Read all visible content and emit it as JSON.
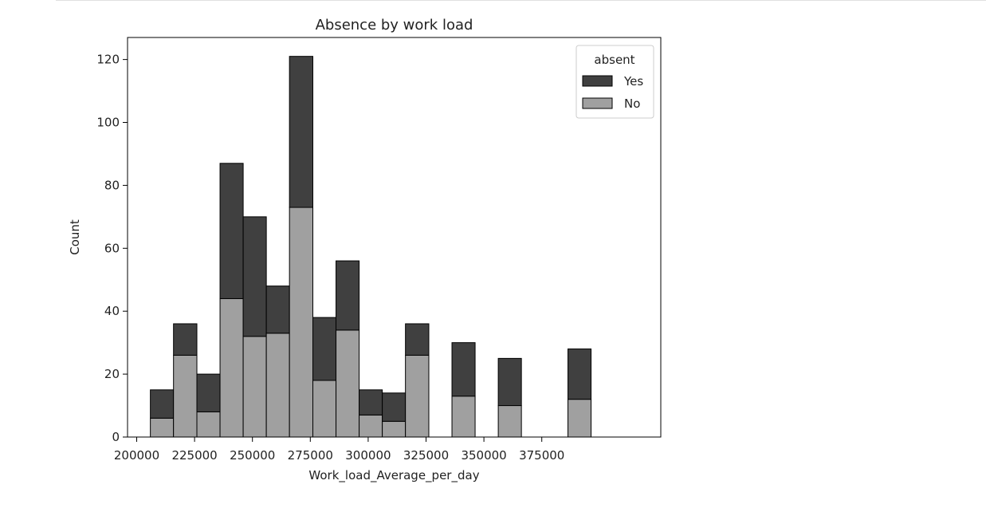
{
  "chart_data": {
    "type": "bar",
    "stacked": true,
    "title": "Absence by work load",
    "xlabel": "Work_load_Average_per_day",
    "ylabel": "Count",
    "xlim": [
      196000,
      384000
    ],
    "ylim": [
      0,
      127
    ],
    "xticks": [
      200000,
      225000,
      250000,
      275000,
      300000,
      325000,
      350000,
      375000
    ],
    "yticks": [
      0,
      20,
      40,
      60,
      80,
      100,
      120
    ],
    "legend": {
      "title": "absent",
      "placement": "top-right"
    },
    "bins": [
      {
        "x0": 205900,
        "x1": 215900,
        "no": 6,
        "yes": 9
      },
      {
        "x0": 215900,
        "x1": 226000,
        "no": 26,
        "yes": 10
      },
      {
        "x0": 226000,
        "x1": 236000,
        "no": 8,
        "yes": 12
      },
      {
        "x0": 236000,
        "x1": 246000,
        "no": 44,
        "yes": 43
      },
      {
        "x0": 246000,
        "x1": 256000,
        "no": 32,
        "yes": 38
      },
      {
        "x0": 256000,
        "x1": 266000,
        "no": 33,
        "yes": 15
      },
      {
        "x0": 266000,
        "x1": 276100,
        "no": 73,
        "yes": 48
      },
      {
        "x0": 276100,
        "x1": 286100,
        "no": 18,
        "yes": 20
      },
      {
        "x0": 286100,
        "x1": 296100,
        "no": 34,
        "yes": 22
      },
      {
        "x0": 296100,
        "x1": 306100,
        "no": 7,
        "yes": 8
      },
      {
        "x0": 306100,
        "x1": 316100,
        "no": 5,
        "yes": 9
      },
      {
        "x0": 316100,
        "x1": 326200,
        "no": 26,
        "yes": 10
      },
      {
        "x0": 326200,
        "x1": 336200,
        "no": 0,
        "yes": 0
      },
      {
        "x0": 336200,
        "x1": 346200,
        "no": 13,
        "yes": 17
      },
      {
        "x0": 346200,
        "x1": 356200,
        "no": 0,
        "yes": 0
      },
      {
        "x0": 356200,
        "x1": 366200,
        "no": 10,
        "yes": 15
      },
      {
        "x0": 366200,
        "x1": 376300,
        "no": 0,
        "yes": 0
      },
      {
        "x0": 376300,
        "x1": 386300,
        "no": 0,
        "yes": 0
      },
      {
        "x0": 386300,
        "x1": 396300,
        "no": 12,
        "yes": 16
      }
    ],
    "series": [
      {
        "name": "Yes",
        "color": "#404040"
      },
      {
        "name": "No",
        "color": "#a0a0a0"
      }
    ]
  }
}
